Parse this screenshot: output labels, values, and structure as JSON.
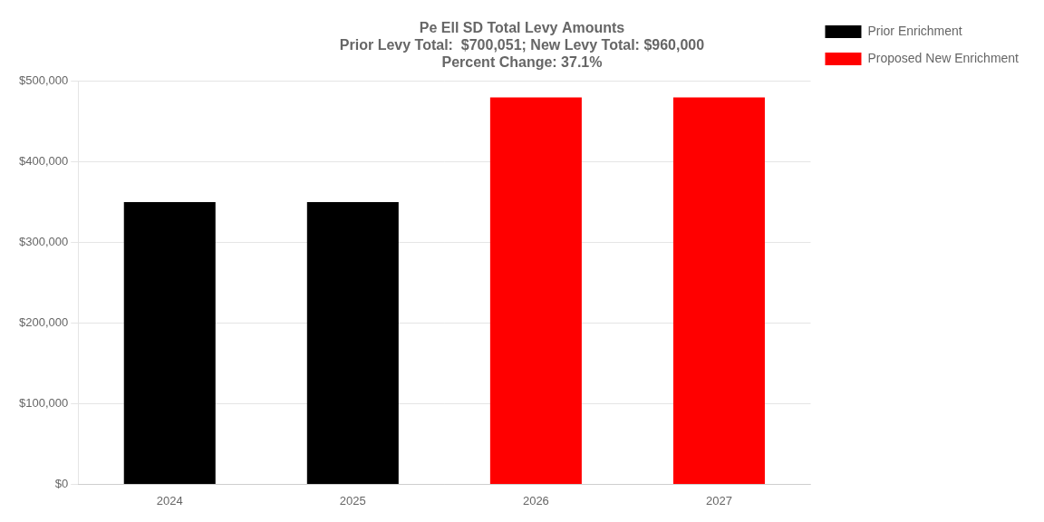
{
  "chart_data": {
    "type": "bar",
    "title": [
      "Pe Ell SD Total Levy Amounts",
      "Prior Levy Total:  $700,051; New Levy Total: $960,000",
      "Percent Change: 37.1%"
    ],
    "categories": [
      "2024",
      "2025",
      "2026",
      "2027"
    ],
    "series": [
      {
        "name": "Prior Enrichment",
        "color": "#000000",
        "values": [
          350026,
          350025,
          null,
          null
        ]
      },
      {
        "name": "Proposed New Enrichment",
        "color": "#ff0000",
        "values": [
          null,
          null,
          480000,
          480000
        ]
      }
    ],
    "ylim": [
      0,
      500000
    ],
    "yticks": [
      {
        "value": 0,
        "label": "$0"
      },
      {
        "value": 100000,
        "label": "$100,000"
      },
      {
        "value": 200000,
        "label": "$200,000"
      },
      {
        "value": 300000,
        "label": "$300,000"
      },
      {
        "value": 400000,
        "label": "$400,000"
      },
      {
        "value": 500000,
        "label": "$500,000"
      }
    ],
    "grid": true,
    "legend": "right"
  }
}
